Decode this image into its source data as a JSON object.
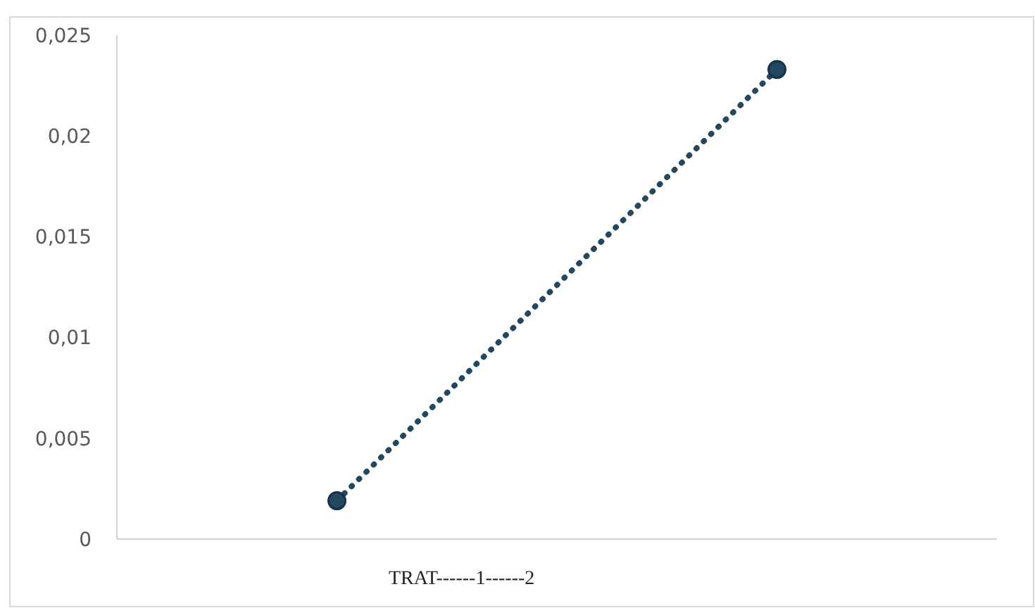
{
  "chart_data": {
    "type": "line",
    "xlabel": "TRAT------1------2",
    "categories": [
      null,
      null
    ],
    "series": [
      {
        "color": "#23475f",
        "values": [
          0.0019,
          0.0233
        ]
      }
    ],
    "ylim": [
      0,
      0.025
    ],
    "yticks": [
      {
        "value": 0,
        "label": "0"
      },
      {
        "value": 0.005,
        "label": "0,005"
      },
      {
        "value": 0.01,
        "label": "0,01"
      },
      {
        "value": 0.015,
        "label": "0,015"
      },
      {
        "value": 0.02,
        "label": "0,02"
      },
      {
        "value": 0.025,
        "label": "0,025"
      }
    ],
    "grid": false,
    "legend": false,
    "marker": "circle",
    "line_style": "dotted"
  }
}
